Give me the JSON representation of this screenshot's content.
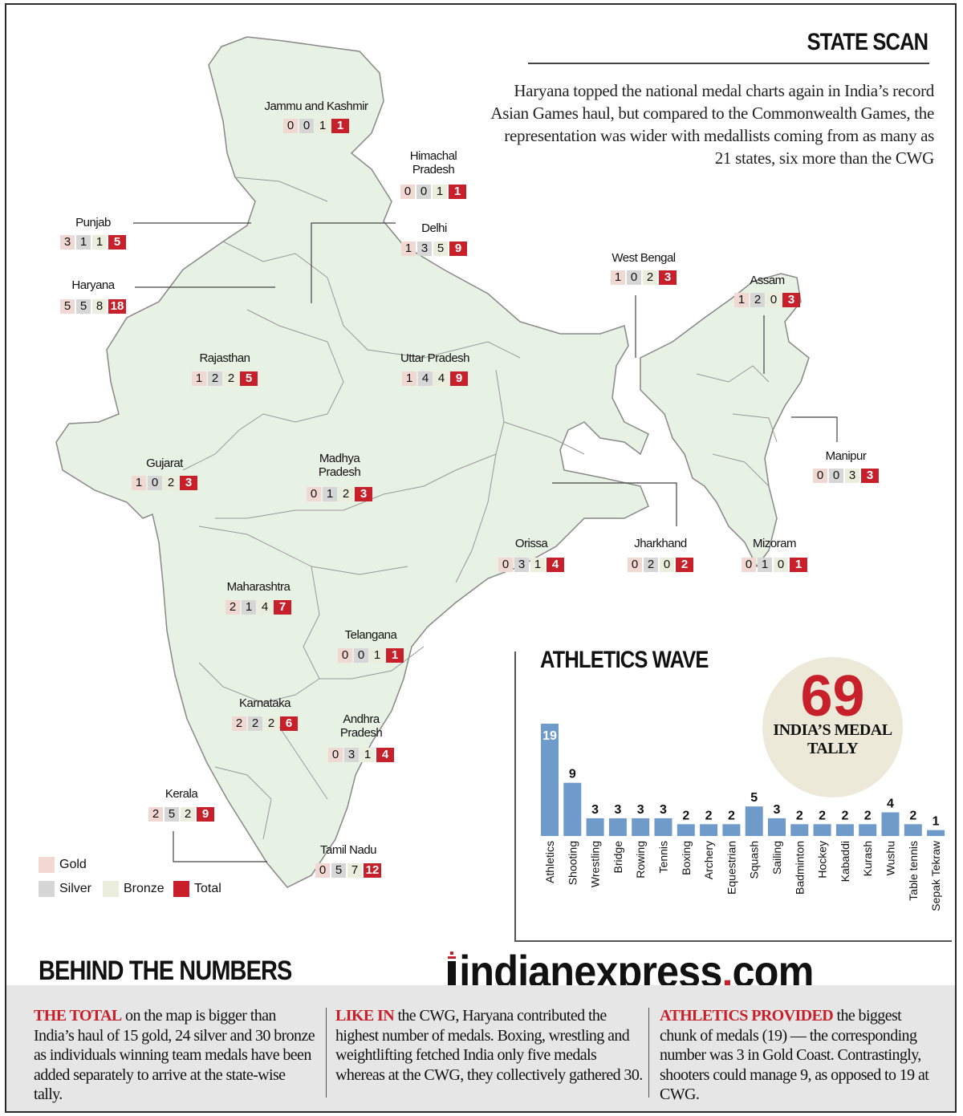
{
  "title": "STATE SCAN",
  "intro": "Haryana topped the national medal charts again in India’s record Asian Games haul, but compared to the Commonwealth Games, the representation was wider with medallists coming from as many as 21 states, six more than the CWG",
  "states": [
    {
      "name": "Jammu and Kashmir",
      "gold": "0",
      "silver": "0",
      "bronze": "1",
      "total": "1"
    },
    {
      "name": "Himachal Pradesh",
      "gold": "0",
      "silver": "0",
      "bronze": "1",
      "total": "1"
    },
    {
      "name": "Punjab",
      "gold": "3",
      "silver": "1",
      "bronze": "1",
      "total": "5"
    },
    {
      "name": "Delhi",
      "gold": "1",
      "silver": "3",
      "bronze": "5",
      "total": "9"
    },
    {
      "name": "Haryana",
      "gold": "5",
      "silver": "5",
      "bronze": "8",
      "total": "18"
    },
    {
      "name": "West Bengal",
      "gold": "1",
      "silver": "0",
      "bronze": "2",
      "total": "3"
    },
    {
      "name": "Assam",
      "gold": "1",
      "silver": "2",
      "bronze": "0",
      "total": "3"
    },
    {
      "name": "Rajasthan",
      "gold": "1",
      "silver": "2",
      "bronze": "2",
      "total": "5"
    },
    {
      "name": "Uttar Pradesh",
      "gold": "1",
      "silver": "4",
      "bronze": "4",
      "total": "9"
    },
    {
      "name": "Gujarat",
      "gold": "1",
      "silver": "0",
      "bronze": "2",
      "total": "3"
    },
    {
      "name": "Madhya Pradesh",
      "gold": "0",
      "silver": "1",
      "bronze": "2",
      "total": "3"
    },
    {
      "name": "Manipur",
      "gold": "0",
      "silver": "0",
      "bronze": "3",
      "total": "3"
    },
    {
      "name": "Orissa",
      "gold": "0",
      "silver": "3",
      "bronze": "1",
      "total": "4"
    },
    {
      "name": "Jharkhand",
      "gold": "0",
      "silver": "2",
      "bronze": "0",
      "total": "2"
    },
    {
      "name": "Mizoram",
      "gold": "0",
      "silver": "1",
      "bronze": "0",
      "total": "1"
    },
    {
      "name": "Maharashtra",
      "gold": "2",
      "silver": "1",
      "bronze": "4",
      "total": "7"
    },
    {
      "name": "Telangana",
      "gold": "0",
      "silver": "0",
      "bronze": "1",
      "total": "1"
    },
    {
      "name": "Karnataka",
      "gold": "2",
      "silver": "2",
      "bronze": "2",
      "total": "6"
    },
    {
      "name": "Andhra Pradesh",
      "gold": "0",
      "silver": "3",
      "bronze": "1",
      "total": "4"
    },
    {
      "name": "Kerala",
      "gold": "2",
      "silver": "5",
      "bronze": "2",
      "total": "9"
    },
    {
      "name": "Tamil Nadu",
      "gold": "0",
      "silver": "5",
      "bronze": "7",
      "total": "12"
    }
  ],
  "legend": {
    "gold": "Gold",
    "silver": "Silver",
    "bronze": "Bronze",
    "total": "Total"
  },
  "colors": {
    "gold": "#f2d8d3",
    "silver": "#d6d6d6",
    "bronze": "#eceedd",
    "total": "#c8202a",
    "land": "#e7f1e4",
    "bar": "#6e9bc9",
    "accent": "#c8202a"
  },
  "athletics_wave": {
    "title": "ATHLETICS WAVE"
  },
  "tally": {
    "number": "69",
    "label_line1": "INDIA’S MEDAL",
    "label_line2": "TALLY"
  },
  "chart_data": {
    "type": "bar",
    "title": "ATHLETICS WAVE",
    "categories": [
      "Athletics",
      "Shooting",
      "Wrestling",
      "Bridge",
      "Rowing",
      "Tennis",
      "Boxing",
      "Archery",
      "Equestrian",
      "Squash",
      "Sailing",
      "Badminton",
      "Hockey",
      "Kabaddi",
      "Kurash",
      "Wushu",
      "Table tennis",
      "Sepak Tekraw"
    ],
    "values": [
      19,
      9,
      3,
      3,
      3,
      3,
      2,
      2,
      2,
      5,
      3,
      2,
      2,
      2,
      2,
      4,
      2,
      1
    ],
    "ylim": [
      0,
      19
    ]
  },
  "logo": {
    "name": "indianexpress",
    "dot": ".",
    "tld": "com"
  },
  "behind": {
    "title": "BEHIND THE NUMBERS",
    "col1_lead": "THE TOTAL",
    "col1_text": " on the map is bigger than India’s haul of 15 gold, 24 silver and 30 bronze as individuals winning team medals have been added separately to arrive at the state-wise tally.",
    "col2_lead": "LIKE IN",
    "col2_text": " the CWG, Haryana contributed the highest number of medals. Boxing, wrestling and weightlifting fetched India only five medals whereas at the CWG, they collectively gathered 30.",
    "col3_lead": "ATHLETICS PROVIDED",
    "col3_text": " the biggest chunk of medals (19) — the corresponding number was 3 in Gold Coast. Contrastingly, shooters could manage 9, as opposed to 19 at CWG."
  }
}
